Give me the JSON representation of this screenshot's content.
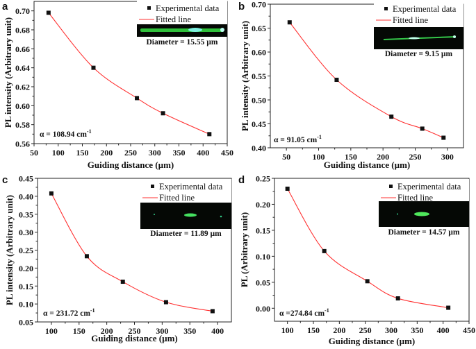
{
  "chart_data": [
    {
      "type": "scatter",
      "panel_label": "a",
      "xlabel": "Guiding distance (µm)",
      "ylabel": "PL intensity (Arbitrary unit)",
      "xlim": [
        50,
        450
      ],
      "ylim": [
        0.56,
        0.71
      ],
      "xticks": [
        50,
        100,
        150,
        200,
        250,
        300,
        350,
        400,
        450
      ],
      "yticks": [
        0.56,
        0.58,
        0.6,
        0.62,
        0.64,
        0.66,
        0.68,
        0.7
      ],
      "ytick_decimals": 2,
      "series": [
        {
          "name": "Experimental data",
          "kind": "points",
          "x": [
            80,
            173,
            263,
            317,
            413
          ],
          "y": [
            0.698,
            0.64,
            0.608,
            0.592,
            0.57
          ]
        },
        {
          "name": "Fitted line",
          "kind": "line",
          "color": "#ff3030"
        }
      ],
      "annotation": "α = 108.94 cm",
      "annotation_sup": "-1",
      "inset_caption": "Diameter = 15.55 µm",
      "grid": false,
      "legend": "top-right"
    },
    {
      "type": "scatter",
      "panel_label": "b",
      "xlabel": "Guiding distance (µm)",
      "ylabel": "PL intensity (Arbitrary unit)",
      "xlim": [
        25,
        325
      ],
      "ylim": [
        0.4,
        0.7
      ],
      "xticks": [
        50,
        100,
        150,
        200,
        250,
        300
      ],
      "yticks": [
        0.4,
        0.45,
        0.5,
        0.55,
        0.6,
        0.65,
        0.7
      ],
      "ytick_decimals": 2,
      "series": [
        {
          "name": "Experimental data",
          "kind": "points",
          "x": [
            55,
            128,
            213,
            261,
            294
          ],
          "y": [
            0.662,
            0.542,
            0.465,
            0.44,
            0.421
          ]
        },
        {
          "name": "Fitted line",
          "kind": "line",
          "color": "#ff3030"
        }
      ],
      "annotation": "α = 91.05 cm",
      "annotation_sup": "-1",
      "inset_caption": "Diameter = 9.15 µm",
      "grid": false,
      "legend": "top-right"
    },
    {
      "type": "scatter",
      "panel_label": "c",
      "xlabel": "Guiding distance (µm)",
      "ylabel": "PL intensity (Arbitrary unit)",
      "xlim": [
        75,
        425
      ],
      "ylim": [
        0.05,
        0.45
      ],
      "xticks": [
        100,
        150,
        200,
        250,
        300,
        350,
        400
      ],
      "yticks": [
        0.05,
        0.1,
        0.15,
        0.2,
        0.25,
        0.3,
        0.35,
        0.4,
        0.45
      ],
      "ytick_decimals": 2,
      "series": [
        {
          "name": "Experimental data",
          "kind": "points",
          "x": [
            100,
            164,
            229,
            307,
            391
          ],
          "y": [
            0.408,
            0.233,
            0.162,
            0.105,
            0.08
          ]
        },
        {
          "name": "Fitted line",
          "kind": "line",
          "color": "#ff3030"
        }
      ],
      "annotation": "α = 231.72 cm",
      "annotation_sup": "-1",
      "inset_caption": "Diameter = 11.89 µm",
      "grid": false,
      "legend": "top-right"
    },
    {
      "type": "scatter",
      "panel_label": "d",
      "xlabel": "Guiding distance (µm)",
      "ylabel": "PL (Arbitrary unit)",
      "xlim": [
        75,
        450
      ],
      "ylim": [
        -0.025,
        0.25
      ],
      "xticks": [
        100,
        150,
        200,
        250,
        300,
        350,
        400,
        450
      ],
      "yticks": [
        0.0,
        0.05,
        0.1,
        0.15,
        0.2,
        0.25
      ],
      "ytick_decimals": 2,
      "series": [
        {
          "name": "Experimental data",
          "kind": "points",
          "x": [
            100,
            171,
            254,
            313,
            410
          ],
          "y": [
            0.23,
            0.11,
            0.052,
            0.019,
            0.001
          ]
        },
        {
          "name": "Fitted line",
          "kind": "line",
          "color": "#ff3030"
        }
      ],
      "annotation": "α =274.84 cm",
      "annotation_sup": "-1",
      "inset_caption": "Diameter = 14.57 µm",
      "grid": false,
      "legend": "top-right"
    }
  ]
}
